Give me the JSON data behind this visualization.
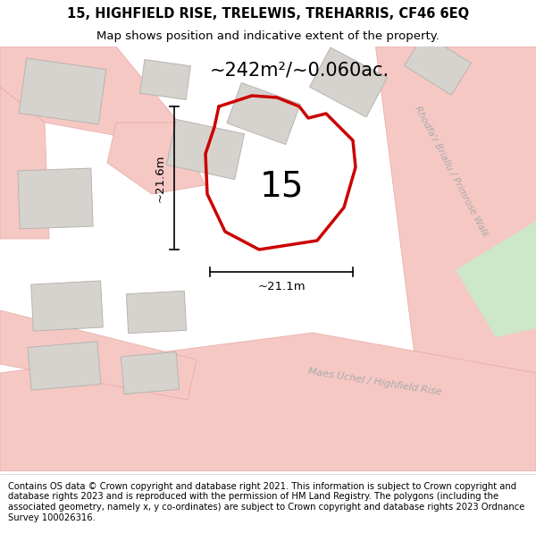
{
  "title_line1": "15, HIGHFIELD RISE, TRELEWIS, TREHARRIS, CF46 6EQ",
  "title_line2": "Map shows position and indicative extent of the property.",
  "footer_text": "Contains OS data © Crown copyright and database right 2021. This information is subject to Crown copyright and database rights 2023 and is reproduced with the permission of HM Land Registry. The polygons (including the associated geometry, namely x, y co-ordinates) are subject to Crown copyright and database rights 2023 Ordnance Survey 100026316.",
  "map_bg": "#f2f0ed",
  "road_color": "#f5c8c4",
  "road_edge": "#e8a8a4",
  "building_fill": "#d6d3ce",
  "building_edge": "#b8b4af",
  "green_fill": "#cce8c8",
  "property_color": "#cc0000",
  "property_label": "15",
  "area_label": "~242m²/~0.060ac.",
  "dim_w_label": "~21.1m",
  "dim_h_label": "~21.6m",
  "road_label_1": "Rhodfa'r Briallu / Primrose Walk",
  "road_label_2": "Maes Uchel / Highfield Rise",
  "title_fontsize": 10.5,
  "subtitle_fontsize": 9.5,
  "footer_fontsize": 7.2,
  "title_bold": true
}
